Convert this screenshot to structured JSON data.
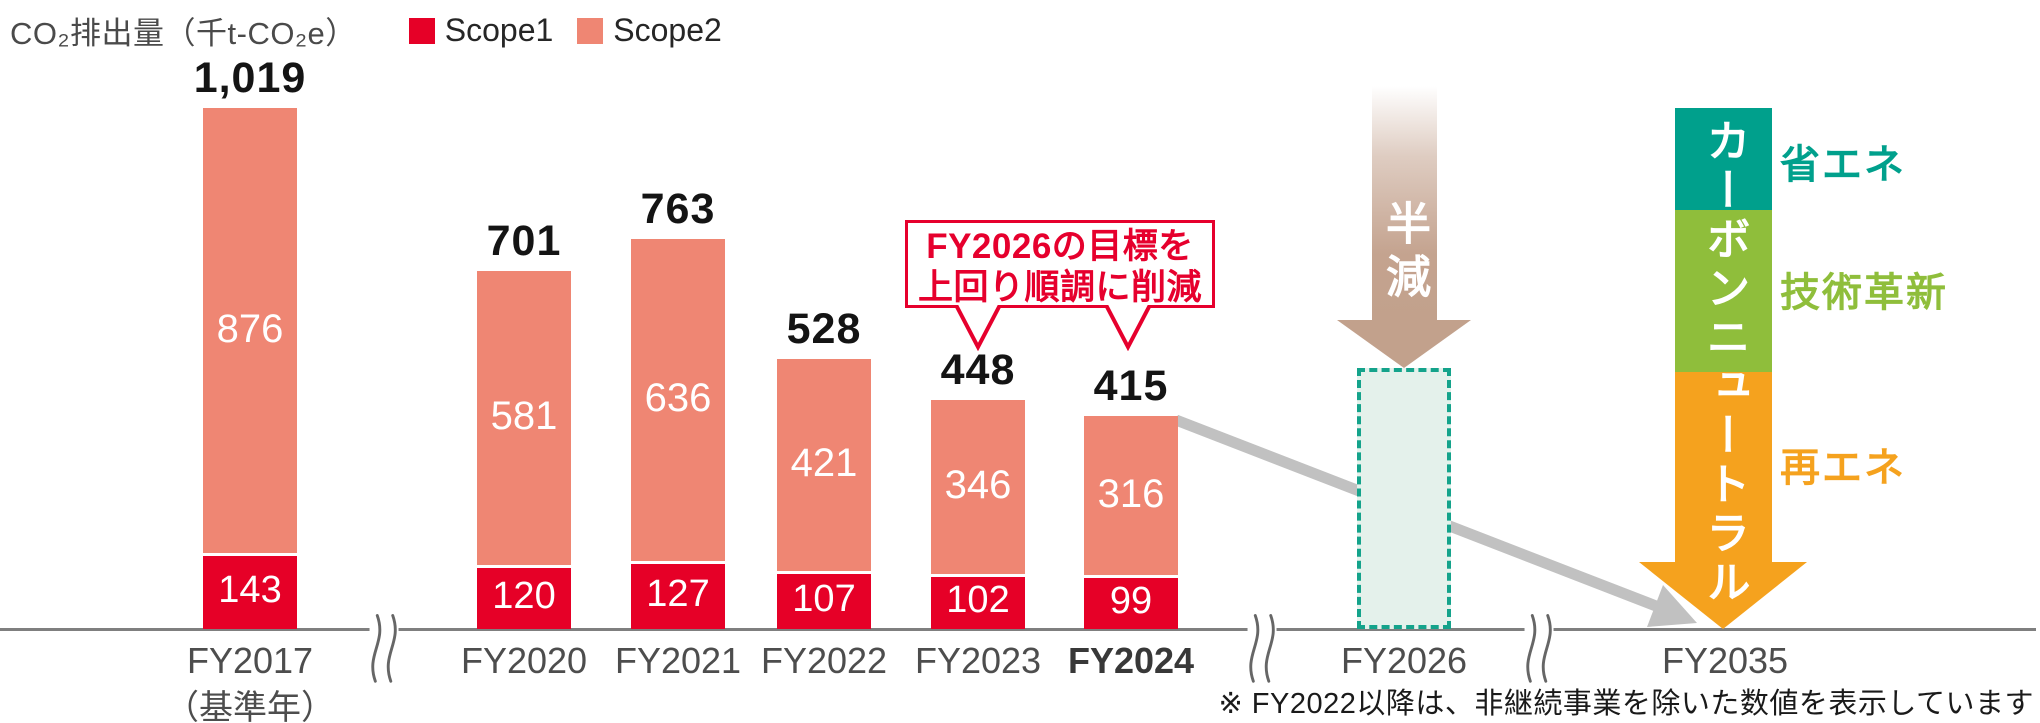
{
  "header": {
    "title": "CO₂排出量（千t-CO₂e）",
    "legend": [
      {
        "label": "Scope1",
        "color": "#e60027"
      },
      {
        "label": "Scope2",
        "color": "#ef8673"
      }
    ]
  },
  "chart_data": {
    "type": "bar",
    "stacked": true,
    "title": "CO₂排出量（千t-CO₂e）",
    "unit": "千t-CO₂e",
    "series": [
      "Scope1",
      "Scope2"
    ],
    "bars": [
      {
        "year": "FY2017",
        "year_note": "（基準年）",
        "scope1": 143,
        "scope2": 876,
        "total": 1019,
        "total_label": "1,019",
        "emphasis": false
      },
      {
        "year": "FY2020",
        "scope1": 120,
        "scope2": 581,
        "total": 701,
        "total_label": "701",
        "emphasis": false
      },
      {
        "year": "FY2021",
        "scope1": 127,
        "scope2": 636,
        "total": 763,
        "total_label": "763",
        "emphasis": false
      },
      {
        "year": "FY2022",
        "scope1": 107,
        "scope2": 421,
        "total": 528,
        "total_label": "528",
        "emphasis": false
      },
      {
        "year": "FY2023",
        "scope1": 102,
        "scope2": 346,
        "total": 448,
        "total_label": "448",
        "emphasis": false
      },
      {
        "year": "FY2024",
        "scope1": 99,
        "scope2": 316,
        "total": 415,
        "total_label": "415",
        "emphasis": true
      }
    ],
    "target": {
      "year": "FY2026",
      "approx_value": 510,
      "box_fill": "#e4f1eb",
      "box_border": "#14a38b"
    },
    "endpoint": {
      "year": "FY2035"
    },
    "colors": {
      "scope1": "#e60027",
      "scope2": "#ef8673",
      "axis": "#7f7f7f",
      "trend_arrow": "#c1c1c1"
    },
    "axis_breaks": 3,
    "ylim": [
      0,
      1100
    ],
    "grid": false,
    "legend_position": "top-left"
  },
  "annotation": {
    "line1": "FY2026の目標を",
    "line2": "上回り順調に削減",
    "color": "#e6002d"
  },
  "halve_arrow": {
    "label": "半減",
    "color": "#c2a18c"
  },
  "carbon_neutral": {
    "vertical_label": "カーボンニュートラル",
    "segments": [
      {
        "label": "省エネ",
        "color": "#00a08c"
      },
      {
        "label": "技術革新",
        "color": "#8fbe3b"
      },
      {
        "label": "再エネ",
        "color": "#f5a21e"
      }
    ]
  },
  "footnote": {
    "text": "※ FY2022以降は、非継続事業を除いた数値を表示しています"
  }
}
